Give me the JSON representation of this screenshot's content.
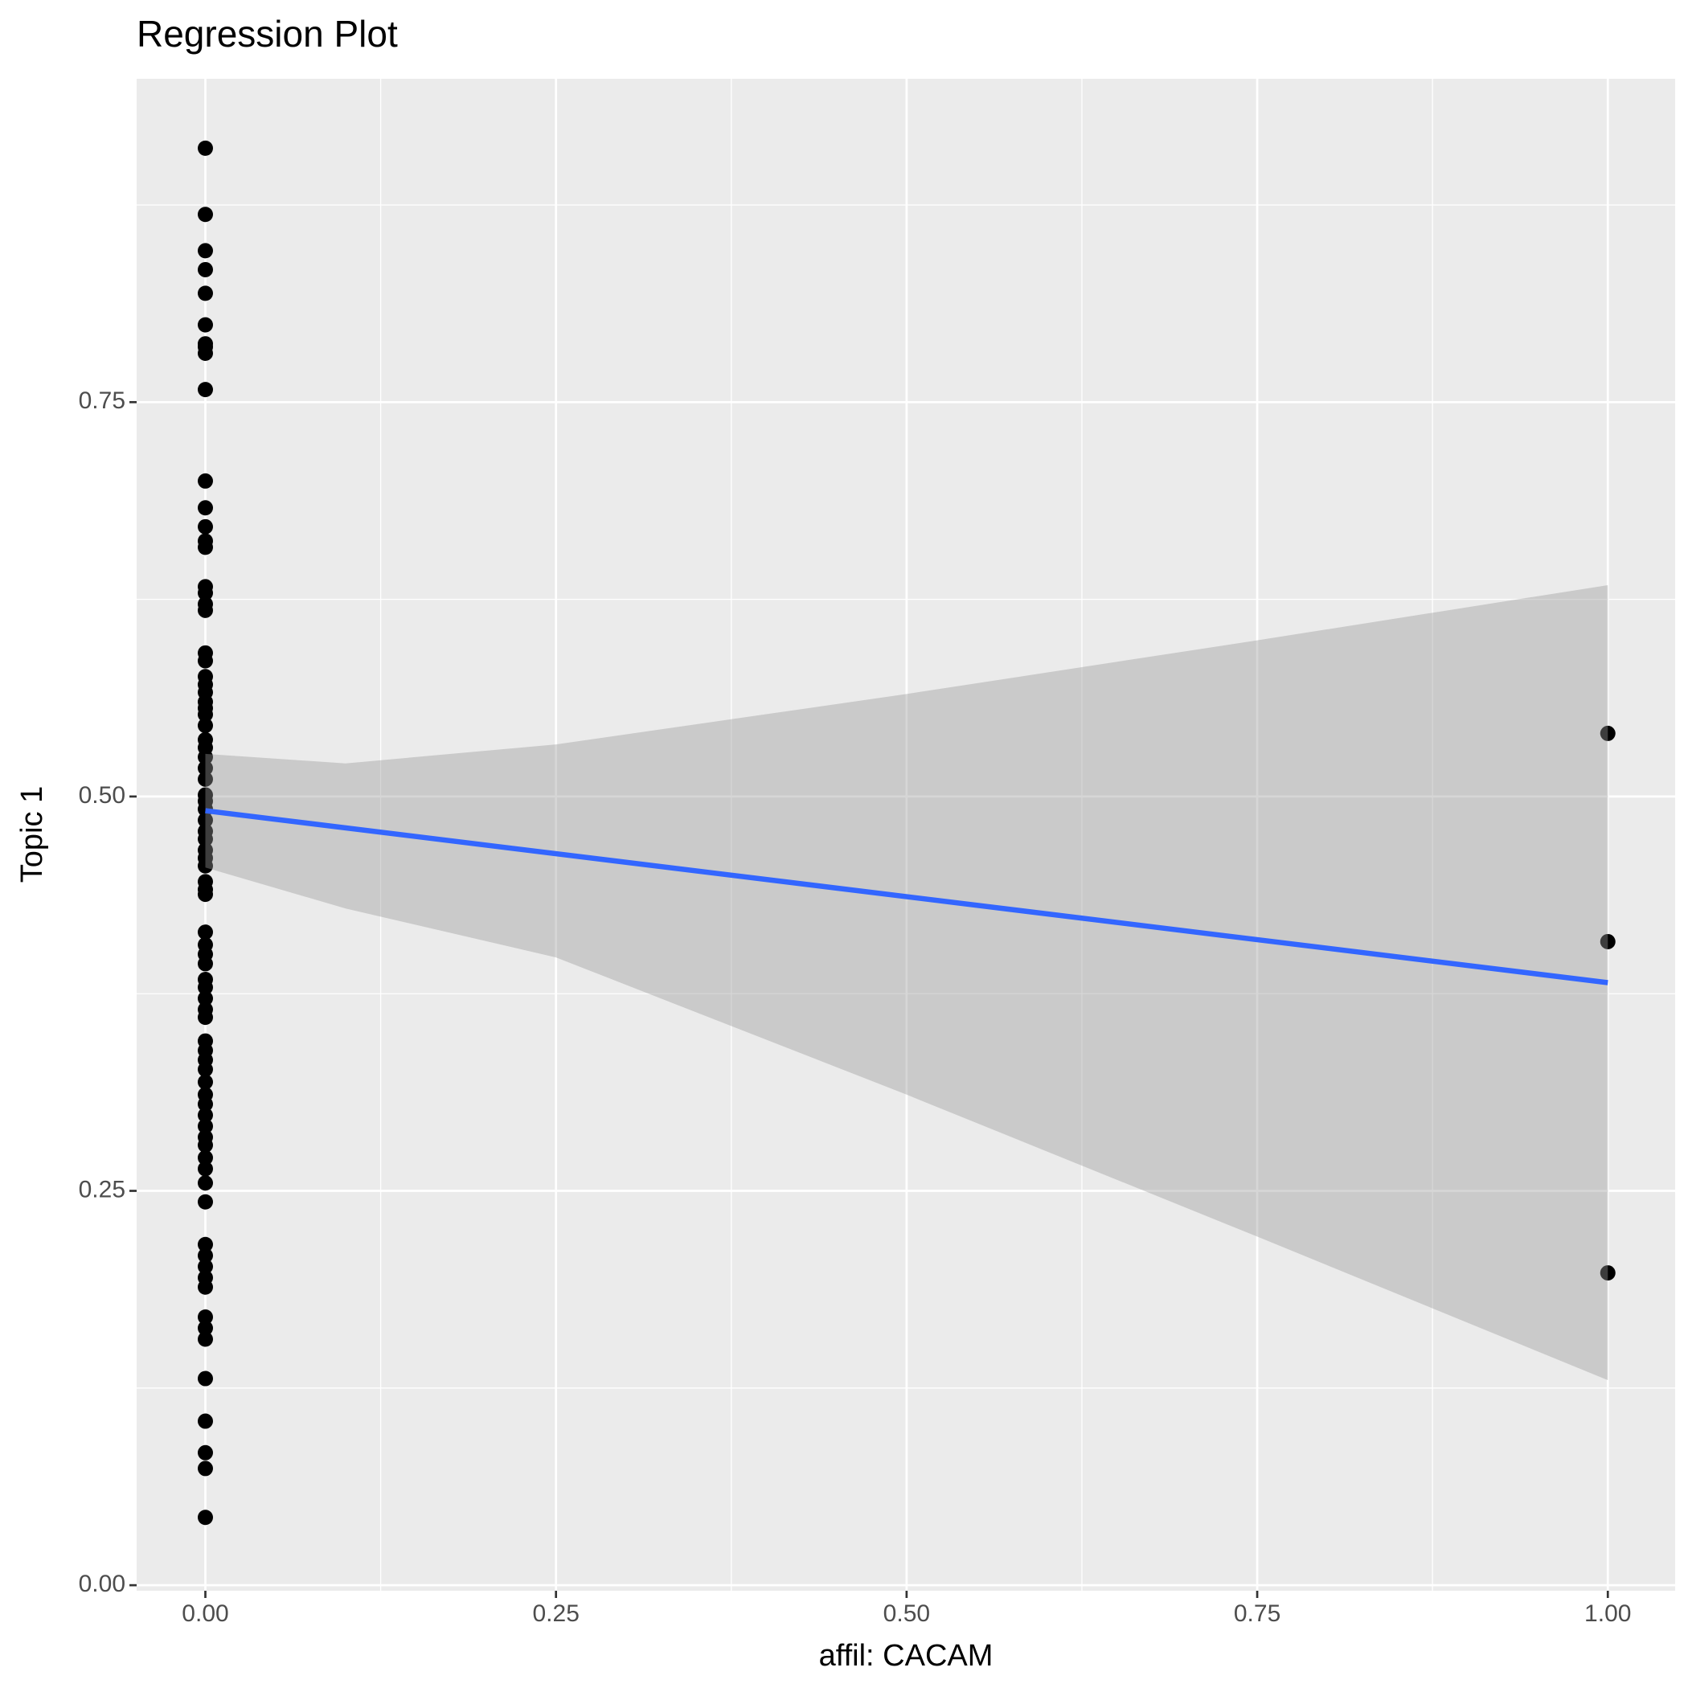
{
  "chart_data": {
    "type": "scatter",
    "title": "Regression Plot",
    "x_label": "affil: CACAM",
    "y_label": "Topic 1",
    "xlim": [
      -0.049,
      1.048
    ],
    "ylim": [
      -0.0035,
      0.955
    ],
    "xticks": [
      {
        "value": 0,
        "label": "0.00"
      },
      {
        "value": 0.25,
        "label": "0.25"
      },
      {
        "value": 0.5,
        "label": "0.50"
      },
      {
        "value": 0.75,
        "label": "0.75"
      },
      {
        "value": 1,
        "label": "1.00"
      }
    ],
    "yticks": [
      {
        "value": 0,
        "label": "0.00"
      },
      {
        "value": 0.25,
        "label": "0.25"
      },
      {
        "value": 0.5,
        "label": "0.50"
      },
      {
        "value": 0.75,
        "label": "0.75"
      }
    ],
    "xminor": [
      0.125,
      0.375,
      0.625,
      0.875
    ],
    "yminor": [
      0.125,
      0.375,
      0.625,
      0.875
    ],
    "grid": true,
    "points": {
      "color": "#000000",
      "x": [
        0,
        0,
        0,
        0,
        0,
        0,
        0,
        0,
        0,
        0,
        0,
        0,
        0,
        0,
        0,
        0,
        0,
        0,
        0,
        0,
        0,
        0,
        0,
        0,
        0,
        0,
        0,
        0,
        0,
        0,
        0,
        0,
        0,
        0,
        0,
        0,
        0,
        0,
        0,
        0,
        0,
        0,
        0,
        0,
        0,
        0,
        0,
        0,
        0,
        0,
        0,
        0,
        0,
        0,
        0,
        0,
        0,
        0,
        0,
        0,
        0,
        0,
        0,
        0,
        0,
        0,
        0,
        0,
        0,
        0,
        0,
        0,
        0,
        0,
        0,
        0,
        0,
        0,
        0,
        0,
        0,
        0,
        1,
        1,
        1
      ],
      "y": [
        0.911,
        0.869,
        0.846,
        0.834,
        0.819,
        0.799,
        0.787,
        0.785,
        0.781,
        0.758,
        0.7,
        0.683,
        0.671,
        0.662,
        0.658,
        0.633,
        0.629,
        0.622,
        0.618,
        0.591,
        0.586,
        0.576,
        0.571,
        0.566,
        0.56,
        0.556,
        0.552,
        0.545,
        0.536,
        0.531,
        0.525,
        0.518,
        0.511,
        0.501,
        0.497,
        0.492,
        0.485,
        0.478,
        0.473,
        0.466,
        0.461,
        0.456,
        0.446,
        0.441,
        0.438,
        0.414,
        0.406,
        0.4,
        0.394,
        0.384,
        0.379,
        0.372,
        0.365,
        0.36,
        0.345,
        0.339,
        0.333,
        0.327,
        0.319,
        0.311,
        0.305,
        0.298,
        0.291,
        0.284,
        0.279,
        0.271,
        0.264,
        0.255,
        0.243,
        0.216,
        0.209,
        0.202,
        0.195,
        0.189,
        0.17,
        0.163,
        0.156,
        0.131,
        0.104,
        0.084,
        0.074,
        0.043,
        0.54,
        0.408,
        0.198
      ]
    },
    "fit": {
      "color": "#3366ff",
      "x": [
        0,
        1
      ],
      "y": [
        0.491,
        0.382
      ]
    },
    "band": {
      "color": "#999999",
      "x": [
        0,
        0.1,
        0.25,
        0.5,
        0.75,
        1
      ],
      "upper": [
        0.527,
        0.521,
        0.533,
        0.565,
        0.599,
        0.634
      ],
      "lower": [
        0.455,
        0.429,
        0.398,
        0.311,
        0.221,
        0.13
      ]
    }
  }
}
